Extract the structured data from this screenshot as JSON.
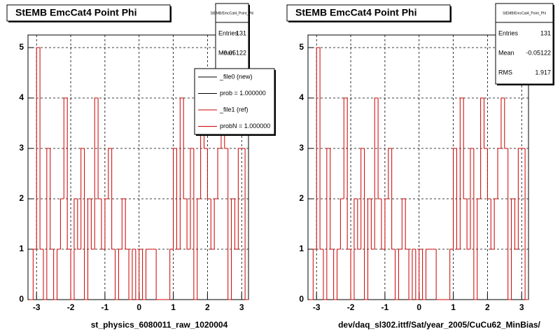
{
  "chart_data": [
    {
      "type": "histogram",
      "title": "StEMB EmcCat4 Point Phi",
      "x_label": "st_physics_6080011_raw_1020004",
      "bins": [
        -3.2,
        -3.1,
        -3.0,
        -2.9,
        -2.8,
        -2.7,
        -2.6,
        -2.5,
        -2.4,
        -2.3,
        -2.2,
        -2.1,
        -2.0,
        -1.9,
        -1.8,
        -1.7,
        -1.6,
        -1.5,
        -1.4,
        -1.3,
        -1.2,
        -1.1,
        -1.0,
        -0.9,
        -0.8,
        -0.7,
        -0.6,
        -0.5,
        -0.4,
        -0.3,
        -0.2,
        -0.1,
        0,
        0.1,
        0.2,
        0.3,
        0.4,
        0.5,
        0.6,
        0.7,
        0.8,
        0.9,
        1.0,
        1.1,
        1.2,
        1.3,
        1.4,
        1.5,
        1.6,
        1.7,
        1.8,
        1.9,
        2.0,
        2.1,
        2.2,
        2.3,
        2.4,
        2.5,
        2.6,
        2.7,
        2.8,
        2.9,
        3.0,
        3.1,
        3.2
      ],
      "values": [
        0,
        1,
        5,
        1,
        0,
        3,
        1,
        0,
        1,
        2,
        4,
        1,
        0,
        2,
        1,
        3,
        0,
        2,
        1,
        4,
        2,
        1,
        2,
        3,
        1,
        0,
        1,
        2,
        1,
        0,
        1,
        0,
        1,
        0,
        1,
        1,
        1,
        0,
        0,
        0,
        0,
        1,
        3,
        1,
        4,
        2,
        1,
        3,
        0,
        2,
        4,
        3,
        2,
        1,
        2,
        3,
        4,
        3,
        0,
        2,
        1,
        3,
        3,
        0
      ],
      "color": "#cc0000",
      "xlim": [
        -3.25,
        3.2
      ],
      "ylim": [
        0,
        5.25
      ],
      "xticks": [
        -3,
        -2,
        -1,
        0,
        1,
        2,
        3
      ],
      "yticks": [
        0,
        1,
        2,
        3,
        4,
        5
      ],
      "grid": true,
      "stats": {
        "title": "StEMB/EmcCat4_Point_Phi",
        "entries_label": "Entries",
        "entries": 131,
        "mean_label": "Mean",
        "mean": -0.05122
      },
      "legend": [
        {
          "label": "_file0 (new)",
          "color": "#000000"
        },
        {
          "label": "prob = 1.000000",
          "color": "#000000"
        },
        {
          "label": "_file1 (ref)",
          "color": "#cc0000"
        },
        {
          "label": "probN = 1.000000",
          "color": "#cc0000"
        }
      ]
    },
    {
      "type": "histogram",
      "title": "StEMB EmcCat4 Point Phi",
      "x_label": "dev/daq_sl302.ittf/Sat/year_2005/CuCu62_MinBias/",
      "bins": [
        -3.2,
        -3.1,
        -3.0,
        -2.9,
        -2.8,
        -2.7,
        -2.6,
        -2.5,
        -2.4,
        -2.3,
        -2.2,
        -2.1,
        -2.0,
        -1.9,
        -1.8,
        -1.7,
        -1.6,
        -1.5,
        -1.4,
        -1.3,
        -1.2,
        -1.1,
        -1.0,
        -0.9,
        -0.8,
        -0.7,
        -0.6,
        -0.5,
        -0.4,
        -0.3,
        -0.2,
        -0.1,
        0,
        0.1,
        0.2,
        0.3,
        0.4,
        0.5,
        0.6,
        0.7,
        0.8,
        0.9,
        1.0,
        1.1,
        1.2,
        1.3,
        1.4,
        1.5,
        1.6,
        1.7,
        1.8,
        1.9,
        2.0,
        2.1,
        2.2,
        2.3,
        2.4,
        2.5,
        2.6,
        2.7,
        2.8,
        2.9,
        3.0,
        3.1,
        3.2
      ],
      "values": [
        0,
        1,
        5,
        1,
        0,
        3,
        1,
        0,
        1,
        2,
        4,
        1,
        0,
        2,
        1,
        3,
        0,
        2,
        1,
        4,
        2,
        1,
        2,
        3,
        1,
        0,
        1,
        2,
        1,
        0,
        1,
        0,
        1,
        0,
        1,
        1,
        1,
        0,
        0,
        0,
        0,
        1,
        3,
        1,
        4,
        2,
        1,
        3,
        0,
        2,
        4,
        3,
        2,
        1,
        2,
        3,
        4,
        3,
        0,
        2,
        1,
        3,
        3,
        0
      ],
      "color": "#cc0000",
      "xlim": [
        -3.25,
        3.2
      ],
      "ylim": [
        0,
        5.25
      ],
      "xticks": [
        -3,
        -2,
        -1,
        0,
        1,
        2,
        3
      ],
      "yticks": [
        0,
        1,
        2,
        3,
        4,
        5
      ],
      "grid": true,
      "stats": {
        "title": "StEMB/EmcCat4_Point_Phi",
        "entries_label": "Entries",
        "entries": 131,
        "mean_label": "Mean",
        "mean": -0.05122,
        "rms_label": "RMS",
        "rms": 1.917
      }
    }
  ]
}
